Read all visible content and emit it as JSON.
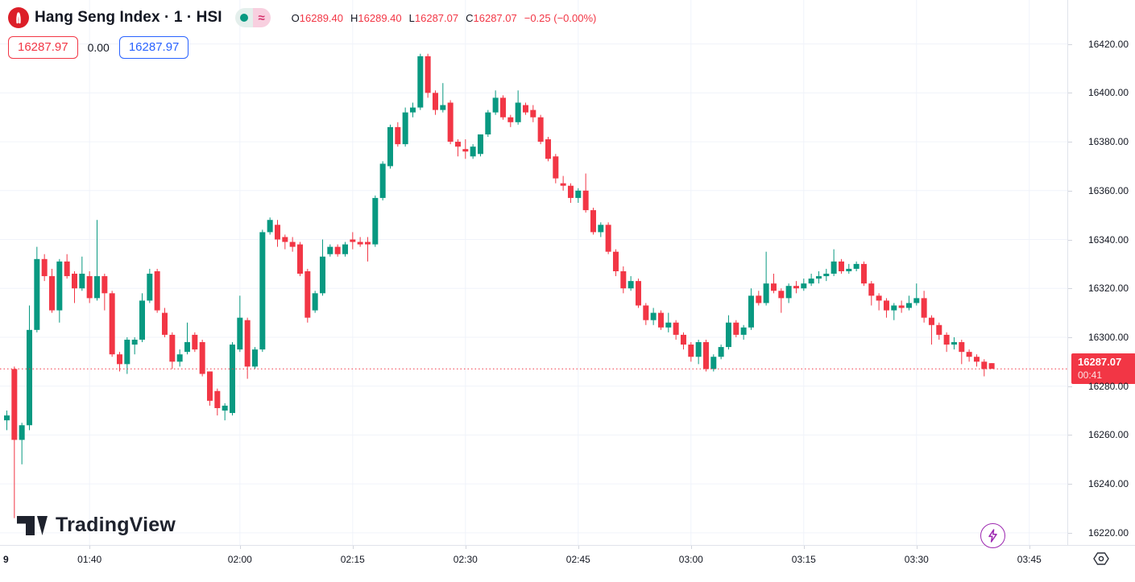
{
  "header": {
    "symbol_title": "Hang Seng Index · 1 · HSI",
    "ohlc": [
      {
        "label": "O",
        "value": "16289.40"
      },
      {
        "label": "H",
        "value": "16289.40"
      },
      {
        "label": "L",
        "value": "16287.07"
      },
      {
        "label": "C",
        "value": "16287.07"
      }
    ],
    "change": "−0.25 (−0.00%)",
    "sell_price": "16287.97",
    "spread": "0.00",
    "buy_price": "16287.97",
    "status": {
      "market_dot_color": "#089981",
      "delayed_symbol": "≈"
    }
  },
  "watermark": {
    "text": "TradingView"
  },
  "price_scale": {
    "tick_values": [
      16420,
      16400,
      16380,
      16360,
      16340,
      16320,
      16300,
      16280,
      16260,
      16240,
      16220
    ],
    "last_price_label": "16287.07",
    "countdown": "00:41"
  },
  "time_scale": {
    "edge_label": "9",
    "ticks": [
      {
        "label": "01:40",
        "offset": 11
      },
      {
        "label": "02:00",
        "offset": 31
      },
      {
        "label": "02:15",
        "offset": 46
      },
      {
        "label": "02:30",
        "offset": 61
      },
      {
        "label": "02:45",
        "offset": 76
      },
      {
        "label": "03:00",
        "offset": 91
      },
      {
        "label": "03:15",
        "offset": 106
      },
      {
        "label": "03:30",
        "offset": 121
      },
      {
        "label": "03:45",
        "offset": 136
      }
    ]
  },
  "chart_data": {
    "type": "candlestick",
    "title": "Hang Seng Index, 1-minute",
    "start_time": "01:29",
    "interval_min": 1,
    "price_range_visible": [
      16215,
      16438
    ],
    "current_price": 16287.07,
    "colors": {
      "up": "#089981",
      "down": "#f23645",
      "grid": "#f0f3fa",
      "price_line": "#f23645"
    },
    "candles": [
      [
        16266,
        16270,
        16262,
        16268
      ],
      [
        16287,
        16288,
        16226,
        16258
      ],
      [
        16258,
        16265,
        16248,
        16264
      ],
      [
        16264,
        16313,
        16262,
        16303
      ],
      [
        16303,
        16337,
        16302,
        16332
      ],
      [
        16332,
        16334,
        16323,
        16325
      ],
      [
        16325,
        16328,
        16310,
        16311
      ],
      [
        16311,
        16332,
        16306,
        16331
      ],
      [
        16331,
        16334,
        16324,
        16325
      ],
      [
        16326,
        16327,
        16314,
        16320
      ],
      [
        16320,
        16333,
        16319,
        16326
      ],
      [
        16325,
        16327,
        16314,
        16316
      ],
      [
        16316,
        16348,
        16315,
        16325
      ],
      [
        16325,
        16326,
        16311,
        16318
      ],
      [
        16318,
        16319,
        16292,
        16293
      ],
      [
        16293,
        16294,
        16286,
        16289
      ],
      [
        16289,
        16300,
        16285,
        16299
      ],
      [
        16297,
        16300,
        16293,
        16299
      ],
      [
        16299,
        16318,
        16298,
        16315
      ],
      [
        16315,
        16328,
        16314,
        16326
      ],
      [
        16327,
        16328,
        16310,
        16311
      ],
      [
        16310,
        16312,
        16300,
        16301
      ],
      [
        16301,
        16302,
        16287,
        16290
      ],
      [
        16290,
        16295,
        16288,
        16293
      ],
      [
        16294,
        16306,
        16293,
        16298
      ],
      [
        16301,
        16302,
        16294,
        16295
      ],
      [
        16298,
        16299,
        16284,
        16285
      ],
      [
        16286,
        16286,
        16272,
        16274
      ],
      [
        16278,
        16279,
        16268,
        16271
      ],
      [
        16270,
        16273,
        16266,
        16272
      ],
      [
        16269,
        16298,
        16268,
        16297
      ],
      [
        16295,
        16317,
        16294,
        16308
      ],
      [
        16307,
        16308,
        16283,
        16288
      ],
      [
        16288,
        16296,
        16287,
        16295
      ],
      [
        16295,
        16344,
        16294,
        16343
      ],
      [
        16343,
        16349,
        16342,
        16348
      ],
      [
        16346,
        16348,
        16337,
        16340
      ],
      [
        16341,
        16342,
        16336,
        16339
      ],
      [
        16339,
        16341,
        16335,
        16337
      ],
      [
        16338,
        16339,
        16325,
        16326
      ],
      [
        16327,
        16328,
        16306,
        16308
      ],
      [
        16311,
        16319,
        16310,
        16318
      ],
      [
        16318,
        16340,
        16317,
        16333
      ],
      [
        16334,
        16338,
        16333,
        16337
      ],
      [
        16337,
        16338,
        16333,
        16334
      ],
      [
        16334,
        16339,
        16333,
        16338
      ],
      [
        16340,
        16343,
        16336,
        16339
      ],
      [
        16339,
        16341,
        16337,
        16338
      ],
      [
        16339,
        16341,
        16331,
        16338
      ],
      [
        16338,
        16358,
        16337,
        16357
      ],
      [
        16357,
        16372,
        16356,
        16371
      ],
      [
        16370,
        16387,
        16369,
        16386
      ],
      [
        16386,
        16388,
        16378,
        16379
      ],
      [
        16379,
        16394,
        16378,
        16392
      ],
      [
        16392,
        16396,
        16390,
        16394
      ],
      [
        16394,
        16416,
        16393,
        16415
      ],
      [
        16415,
        16416,
        16398,
        16400
      ],
      [
        16400,
        16401,
        16391,
        16393
      ],
      [
        16393,
        16404,
        16392,
        16395
      ],
      [
        16396,
        16397,
        16379,
        16380
      ],
      [
        16380,
        16381,
        16374,
        16378
      ],
      [
        16377,
        16381,
        16373,
        16376
      ],
      [
        16374,
        16379,
        16373,
        16378
      ],
      [
        16375,
        16383,
        16374,
        16383
      ],
      [
        16383,
        16393,
        16382,
        16392
      ],
      [
        16392,
        16401,
        16391,
        16398
      ],
      [
        16398,
        16399,
        16389,
        16390
      ],
      [
        16390,
        16391,
        16386,
        16388
      ],
      [
        16388,
        16401,
        16387,
        16396
      ],
      [
        16395,
        16396,
        16391,
        16392
      ],
      [
        16393,
        16395,
        16388,
        16390
      ],
      [
        16390,
        16391,
        16379,
        16380
      ],
      [
        16381,
        16382,
        16372,
        16373
      ],
      [
        16374,
        16375,
        16363,
        16365
      ],
      [
        16363,
        16366,
        16360,
        16362
      ],
      [
        16362,
        16363,
        16355,
        16357
      ],
      [
        16357,
        16361,
        16355,
        16360
      ],
      [
        16360,
        16367,
        16351,
        16352
      ],
      [
        16352,
        16353,
        16342,
        16343
      ],
      [
        16343,
        16347,
        16341,
        16346
      ],
      [
        16346,
        16347,
        16334,
        16335
      ],
      [
        16335,
        16336,
        16325,
        16327
      ],
      [
        16327,
        16329,
        16318,
        16320
      ],
      [
        16320,
        16325,
        16319,
        16323
      ],
      [
        16323,
        16324,
        16312,
        16313
      ],
      [
        16313,
        16314,
        16305,
        16307
      ],
      [
        16307,
        16312,
        16305,
        16310
      ],
      [
        16310,
        16311,
        16303,
        16304
      ],
      [
        16304,
        16310,
        16302,
        16306
      ],
      [
        16306,
        16307,
        16299,
        16301
      ],
      [
        16301,
        16302,
        16295,
        16297
      ],
      [
        16297,
        16298,
        16290,
        16292
      ],
      [
        16292,
        16299,
        16289,
        16298
      ],
      [
        16298,
        16299,
        16286,
        16287
      ],
      [
        16287,
        16293,
        16286,
        16292
      ],
      [
        16292,
        16297,
        16291,
        16296
      ],
      [
        16296,
        16309,
        16295,
        16306
      ],
      [
        16306,
        16307,
        16300,
        16301
      ],
      [
        16301,
        16305,
        16299,
        16304
      ],
      [
        16304,
        16320,
        16303,
        16317
      ],
      [
        16317,
        16319,
        16313,
        16314
      ],
      [
        16314,
        16335,
        16313,
        16322
      ],
      [
        16322,
        16326,
        16318,
        16319
      ],
      [
        16319,
        16320,
        16310,
        16316
      ],
      [
        16316,
        16322,
        16314,
        16321
      ],
      [
        16321,
        16323,
        16318,
        16320
      ],
      [
        16320,
        16324,
        16319,
        16322
      ],
      [
        16322,
        16326,
        16321,
        16324
      ],
      [
        16324,
        16327,
        16322,
        16325
      ],
      [
        16325,
        16328,
        16323,
        16326
      ],
      [
        16326,
        16336,
        16325,
        16331
      ],
      [
        16331,
        16332,
        16326,
        16327
      ],
      [
        16327,
        16330,
        16326,
        16328
      ],
      [
        16328,
        16331,
        16327,
        16330
      ],
      [
        16330,
        16331,
        16321,
        16322
      ],
      [
        16322,
        16323,
        16313,
        16317
      ],
      [
        16317,
        16318,
        16311,
        16315
      ],
      [
        16315,
        16316,
        16308,
        16311
      ],
      [
        16311,
        16314,
        16307,
        16313
      ],
      [
        16313,
        16315,
        16310,
        16312
      ],
      [
        16312,
        16317,
        16311,
        16314
      ],
      [
        16314,
        16322,
        16313,
        16316
      ],
      [
        16316,
        16319,
        16306,
        16308
      ],
      [
        16308,
        16309,
        16297,
        16305
      ],
      [
        16305,
        16306,
        16299,
        16301
      ],
      [
        16301,
        16302,
        16294,
        16297
      ],
      [
        16297,
        16300,
        16295,
        16298
      ],
      [
        16298,
        16299,
        16289,
        16294
      ],
      [
        16294,
        16295,
        16290,
        16292
      ],
      [
        16292,
        16293,
        16288,
        16290
      ],
      [
        16290,
        16291,
        16284,
        16287
      ],
      [
        16289.4,
        16289.4,
        16287.07,
        16287.07
      ]
    ]
  }
}
